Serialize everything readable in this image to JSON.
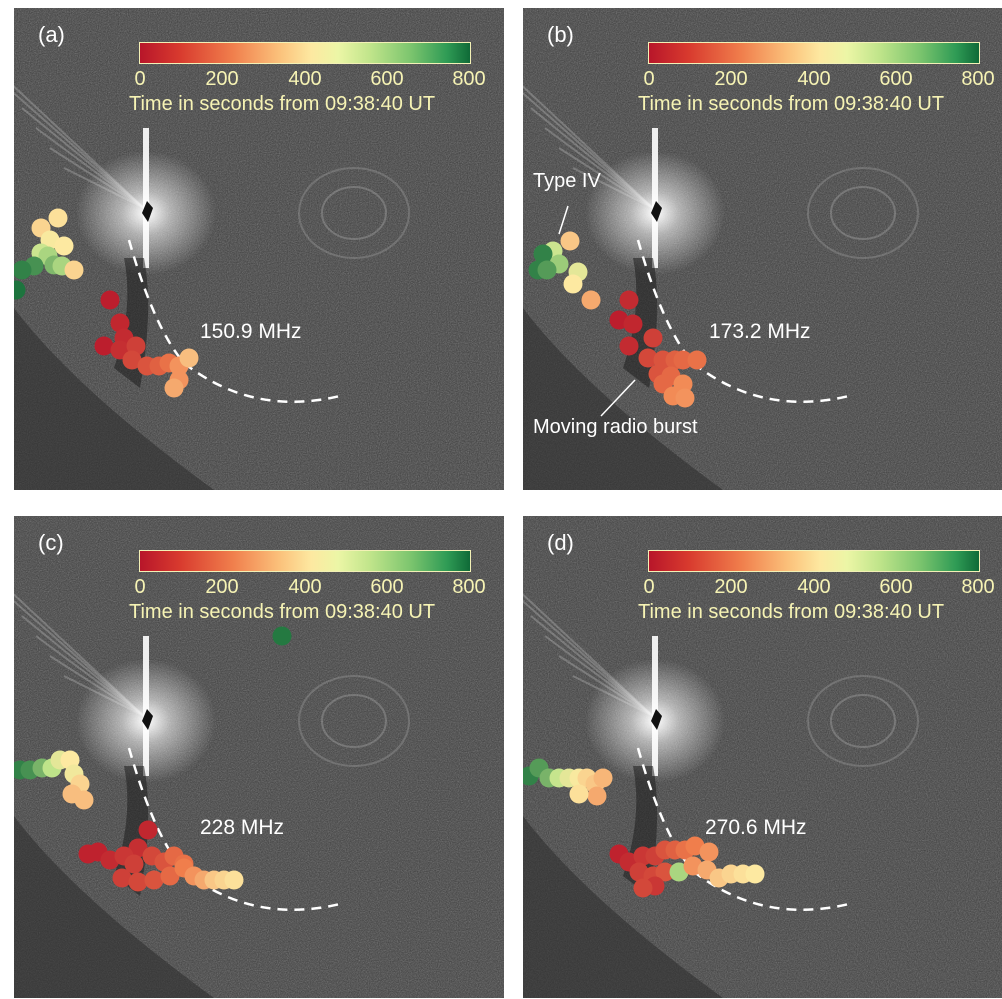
{
  "colorbar": {
    "ticks": [
      "0",
      "200",
      "400",
      "600",
      "800"
    ],
    "label": "Time in seconds from 09:38:40 UT",
    "range": [
      0,
      800
    ],
    "colors": [
      "#b8162a",
      "#f07e4c",
      "#fde9a1",
      "#bfe48a",
      "#0f6a37"
    ]
  },
  "panels": [
    {
      "label": "(a)",
      "frequency": "150.9 MHz"
    },
    {
      "label": "(b)",
      "frequency": "173.2 MHz",
      "annotations": {
        "type_iv": "Type IV",
        "moving_burst": "Moving radio burst"
      }
    },
    {
      "label": "(c)",
      "frequency": "228 MHz"
    },
    {
      "label": "(d)",
      "frequency": "270.6 MHz"
    }
  ]
}
